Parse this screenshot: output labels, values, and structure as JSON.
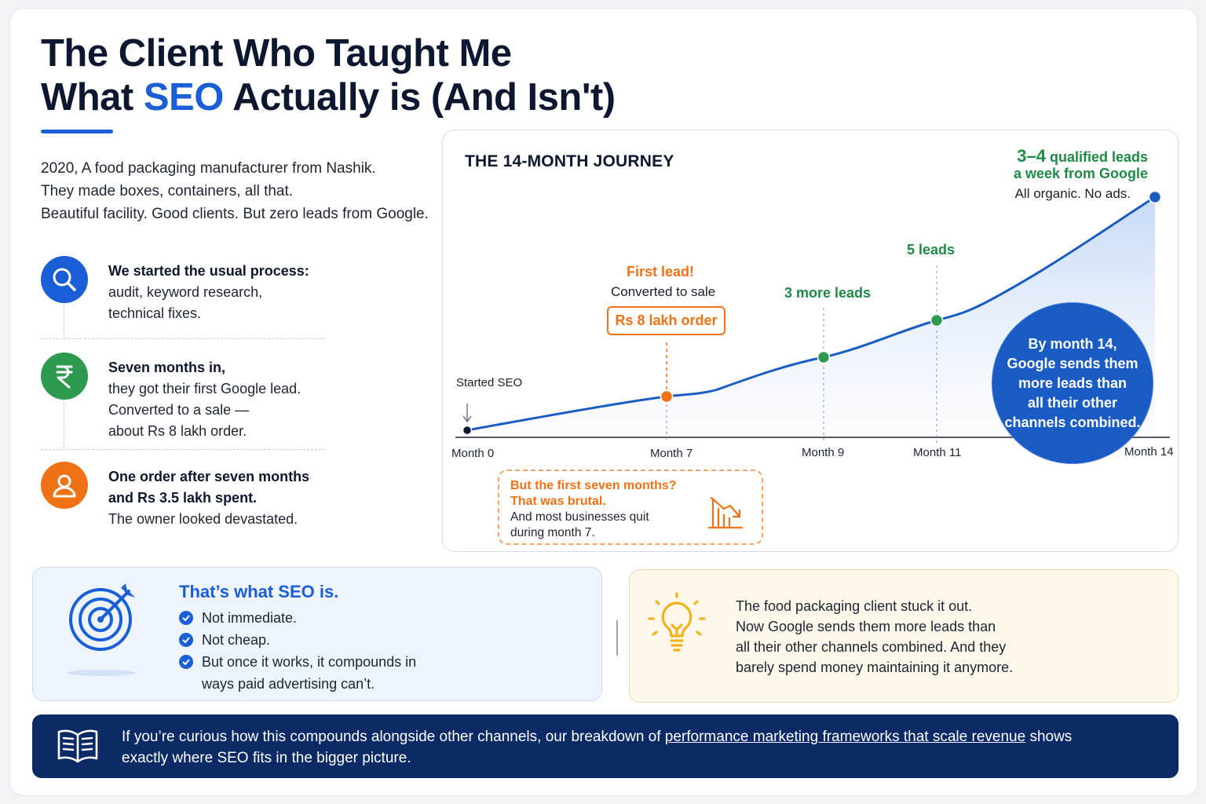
{
  "title": {
    "line1": "The Client Who Taught Me",
    "line2_pre": "What ",
    "line2_highlight": "SEO",
    "line2_post": " Actually is (And Isn't)"
  },
  "intro": [
    "2020, A food packaging manufacturer from Nashik.",
    "They made boxes, containers, all that.",
    "Beautiful facility. Good clients. But zero leads from Google."
  ],
  "steps": [
    {
      "icon": "search-icon",
      "bold": [
        "We started the usual process:"
      ],
      "body": [
        "audit, keyword research,",
        "technical fixes."
      ]
    },
    {
      "icon": "rupee-icon",
      "bold": [
        "Seven months in,"
      ],
      "body": [
        "they got their first Google lead.",
        "Converted to a sale —",
        "about Rs 8 lakh order."
      ]
    },
    {
      "icon": "user-icon",
      "bold": [
        "One order after seven months",
        "and Rs 3.5 lakh spent."
      ],
      "body": [
        "The owner looked devastated."
      ]
    }
  ],
  "chart": {
    "title": "THE 14-MONTH JOURNEY",
    "start_label": "Started SEO",
    "first_lead_title": "First lead!",
    "first_lead_sub": "Converted to sale",
    "order_badge": "Rs 8 lakh order",
    "m9_label": "3 more leads",
    "m11_label": "5 leads",
    "m14_big": "3–4",
    "m14_line1": " qualified leads",
    "m14_line2": "a week from Google",
    "m14_sub": "All organic. No ads.",
    "circle_text": [
      "By month 14,",
      "Google sends them",
      "more leads than",
      "all their other",
      "channels combined."
    ],
    "callout_title": [
      "But the first seven months?",
      "That was brutal."
    ],
    "callout_body": [
      "And most businesses quit",
      "during month 7."
    ],
    "colors": {
      "line": "#1a5bc4",
      "orange": "#f07216",
      "green": "#2e9a4f",
      "start": "#0d1730"
    }
  },
  "chart_data": {
    "type": "line",
    "title": "THE 14-MONTH JOURNEY",
    "x": [
      "Month 0",
      "Month 7",
      "Month 9",
      "Month 11",
      "Month 14"
    ],
    "x_values": [
      0,
      7,
      9,
      11,
      14
    ],
    "markers": [
      {
        "month": 0,
        "label": "Started SEO"
      },
      {
        "month": 7,
        "label": "First lead!"
      },
      {
        "month": 9,
        "label": "3 more leads"
      },
      {
        "month": 11,
        "label": "5 leads"
      },
      {
        "month": 14,
        "label": "3–4 qualified leads a week from Google"
      }
    ],
    "xlabel": "",
    "ylabel": "",
    "grid": false
  },
  "seo_box": {
    "title": "That’s what SEO is.",
    "items": [
      "Not immediate.",
      "Not cheap.",
      "But once it works, it compounds in"
    ],
    "item3_cont": "ways paid advertising can’t."
  },
  "tip": [
    "The food packaging client stuck it out.",
    "Now Google sends them more leads than",
    "all their other channels combined. And they",
    "barely spend money maintaining it anymore."
  ],
  "banner": {
    "pre": "If you’re curious how this compounds alongside other channels, our breakdown of ",
    "link": "performance marketing frameworks that scale revenue",
    "post": " shows",
    "line2": "exactly where SEO fits in the bigger picture."
  },
  "colors": {
    "accent": "#1a5fd6",
    "navy": "#0c2a66",
    "green": "#2e9a4f",
    "orange": "#f07216"
  }
}
